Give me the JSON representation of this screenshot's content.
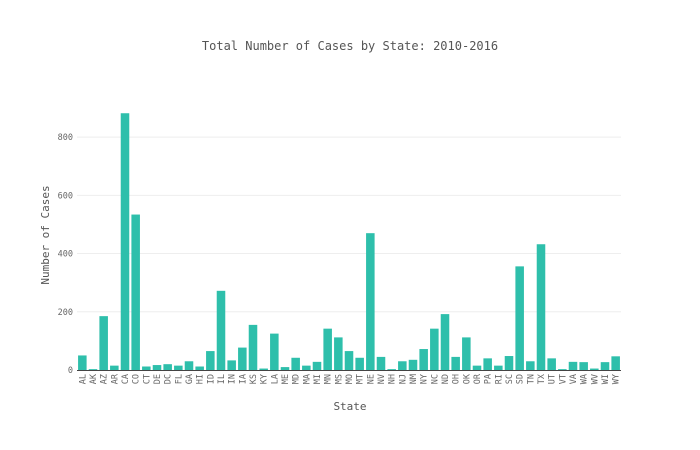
{
  "chart_data": {
    "type": "bar",
    "title": "Total Number of Cases by State: 2010-2016",
    "xlabel": "State",
    "ylabel": "Number of Cases",
    "ylim": [
      0,
      900
    ],
    "yticks": [
      0,
      200,
      400,
      600,
      800
    ],
    "grid": true,
    "legend": "none",
    "bar_color": "#2ebfab",
    "categories": [
      "AL",
      "AK",
      "AZ",
      "AR",
      "CA",
      "CO",
      "CT",
      "DE",
      "DC",
      "FL",
      "GA",
      "HI",
      "ID",
      "IL",
      "IN",
      "IA",
      "KS",
      "KY",
      "LA",
      "ME",
      "MD",
      "MA",
      "MI",
      "MN",
      "MS",
      "MO",
      "MT",
      "NE",
      "NV",
      "NH",
      "NJ",
      "NM",
      "NY",
      "NC",
      "ND",
      "OH",
      "OK",
      "OR",
      "PA",
      "RI",
      "SC",
      "SD",
      "TN",
      "TX",
      "UT",
      "VT",
      "VA",
      "WA",
      "WV",
      "WI",
      "WY"
    ],
    "values": [
      50,
      3,
      185,
      15,
      882,
      534,
      12,
      17,
      20,
      15,
      30,
      12,
      65,
      272,
      33,
      77,
      155,
      5,
      125,
      10,
      42,
      15,
      28,
      142,
      112,
      65,
      42,
      470,
      45,
      3,
      30,
      35,
      72,
      142,
      192,
      45,
      112,
      15,
      40,
      15,
      48,
      356,
      30,
      432,
      40,
      3,
      28,
      27,
      5,
      27,
      47
    ]
  }
}
